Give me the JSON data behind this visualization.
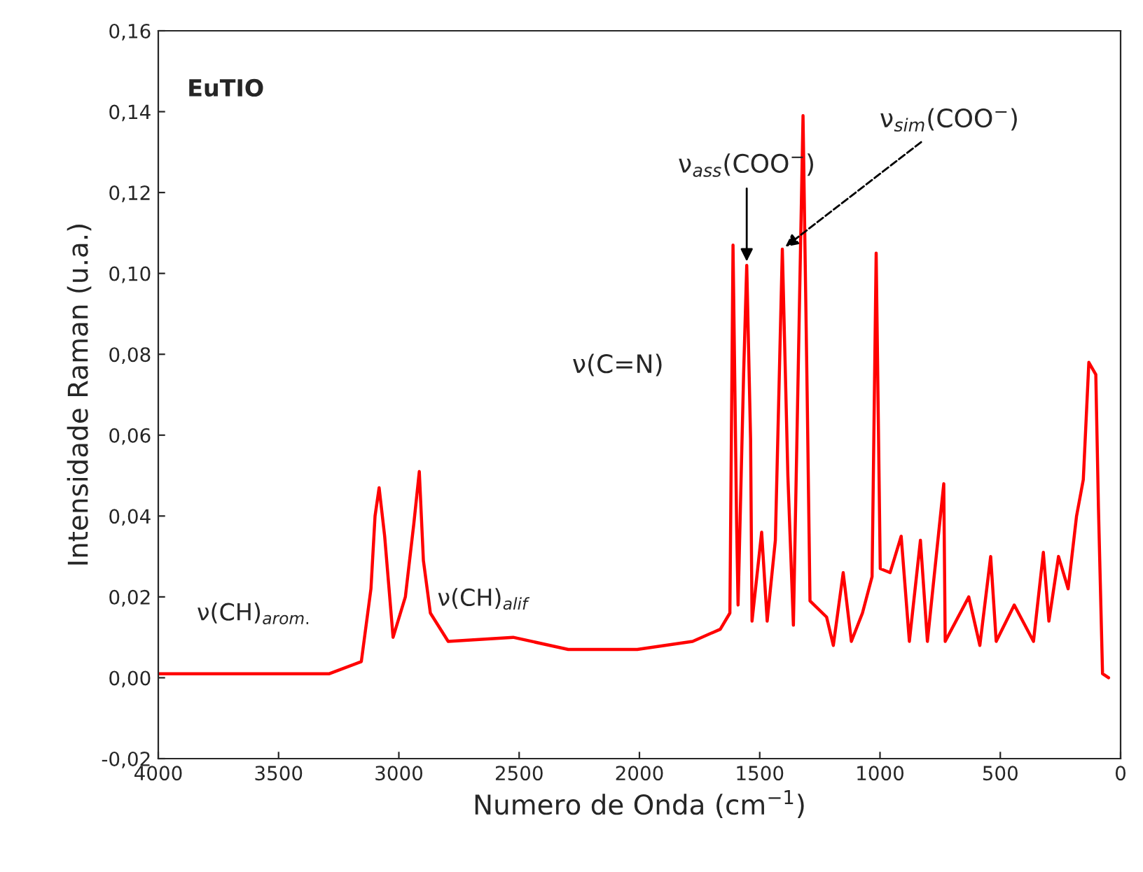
{
  "chart_data": {
    "type": "line",
    "xlabel": "Numero de Onda (cm$^{−1}$)",
    "ylabel": "Intensidade Raman (u.a.)",
    "x": [
      4000,
      3600,
      3289,
      3156,
      3116,
      3099,
      3082,
      3059,
      3024,
      2973,
      2938,
      2915,
      2898,
      2869,
      2795,
      2525,
      2296,
      2009,
      1779,
      1664,
      1624,
      1611,
      1596,
      1590,
      1567,
      1554,
      1538,
      1532,
      1492,
      1469,
      1435,
      1406,
      1383,
      1360,
      1320,
      1303,
      1291,
      1222,
      1194,
      1153,
      1119,
      1073,
      1033,
      1016,
      999,
      958,
      912,
      878,
      832,
      803,
      735,
      729,
      631,
      585,
      540,
      517,
      442,
      362,
      321,
      298,
      258,
      218,
      183,
      155,
      132,
      103,
      92,
      75,
      50
    ],
    "series": [
      {
        "color": "#ff0000",
        "values": [
          0.001,
          0.001,
          0.001,
          0.004,
          0.022,
          0.04,
          0.047,
          0.035,
          0.01,
          0.02,
          0.038,
          0.051,
          0.029,
          0.016,
          0.009,
          0.01,
          0.007,
          0.007,
          0.009,
          0.012,
          0.016,
          0.107,
          0.038,
          0.018,
          0.075,
          0.102,
          0.059,
          0.014,
          0.036,
          0.014,
          0.034,
          0.106,
          0.05,
          0.013,
          0.139,
          0.071,
          0.019,
          0.015,
          0.008,
          0.026,
          0.009,
          0.016,
          0.025,
          0.105,
          0.027,
          0.026,
          0.035,
          0.009,
          0.034,
          0.009,
          0.048,
          0.009,
          0.02,
          0.008,
          0.03,
          0.009,
          0.018,
          0.009,
          0.031,
          0.014,
          0.03,
          0.022,
          0.04,
          0.049,
          0.078,
          0.075,
          0.042,
          0.001,
          0.0
        ]
      }
    ],
    "xlim": [
      4000,
      0
    ],
    "ylim": [
      -0.02,
      0.16
    ],
    "xticks": [
      4000,
      3500,
      3000,
      2500,
      2000,
      1500,
      1000,
      500,
      0
    ],
    "yticks": [
      {
        "value": -0.02,
        "label": "-0,02"
      },
      {
        "value": 0.0,
        "label": "0,00"
      },
      {
        "value": 0.02,
        "label": "0,02"
      },
      {
        "value": 0.04,
        "label": "0,04"
      },
      {
        "value": 0.06,
        "label": "0,06"
      },
      {
        "value": 0.08,
        "label": "0,08"
      },
      {
        "value": 0.1,
        "label": "0,10"
      },
      {
        "value": 0.12,
        "label": "0,12"
      },
      {
        "value": 0.14,
        "label": "0,14"
      },
      {
        "value": 0.16,
        "label": "0,16"
      }
    ],
    "grid": false,
    "legend": false,
    "annotations": [
      "EuTIO",
      "ν(CH)$_{arom.}$",
      "ν(CH)$_{alif}$",
      "ν(C=N)",
      {
        "text": "ν$_{ass}$(COO$^{−}$)",
        "x": 1554,
        "y": 0.102
      },
      {
        "text": "ν$_{sim}$(COO$^{−}$)",
        "x": 1406,
        "y": 0.106
      }
    ]
  }
}
